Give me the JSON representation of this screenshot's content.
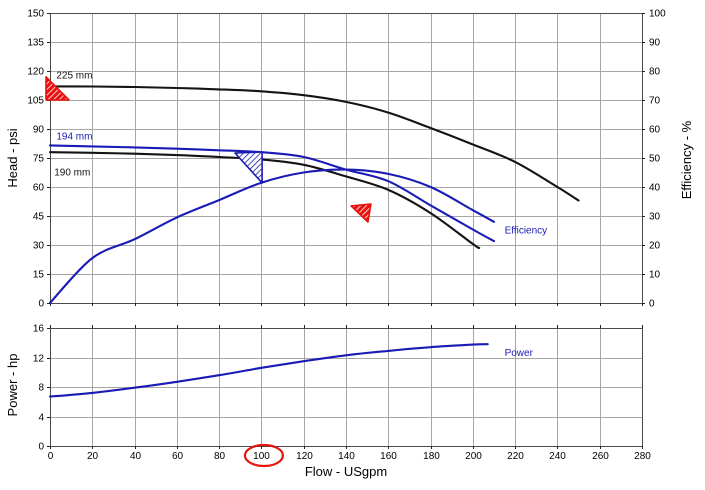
{
  "palette": {
    "curve_blue": "#1a1ab5",
    "curve_black": "#141414",
    "marker_red": "#e8120e",
    "annotation_red": "#e8120e",
    "grid": "#a6a6a6",
    "frame": "#4a4a4a",
    "text": "#000000"
  },
  "chart_data": [
    {
      "id": "head",
      "type": "line",
      "x_axis": {
        "label": "",
        "min": 0,
        "max": 280,
        "tick_step": 20,
        "show_tick_labels": false
      },
      "y_left": {
        "label": "Head - psi",
        "min": 0,
        "max": 150,
        "tick_step": 15
      },
      "y_right": {
        "label": "Efficiency - %",
        "min": 0,
        "max": 100,
        "tick_step": 10
      },
      "grid": true,
      "series": [
        {
          "name": "225 mm",
          "axis": "left",
          "color_key": "black",
          "x": [
            0,
            20,
            40,
            60,
            80,
            100,
            120,
            140,
            160,
            180,
            200,
            220,
            240,
            250
          ],
          "y": [
            112,
            112,
            111.7,
            111.2,
            110.5,
            109.5,
            107.5,
            104,
            98.5,
            90.5,
            82,
            73,
            60,
            53
          ],
          "label": {
            "text": "225 mm",
            "x": 3,
            "y": 116
          }
        },
        {
          "name": "194 mm",
          "axis": "left",
          "color_key": "blue",
          "x": [
            0,
            20,
            40,
            60,
            80,
            100,
            120,
            140,
            160,
            180,
            200,
            210
          ],
          "y": [
            81.5,
            81,
            80.5,
            79.8,
            79,
            78,
            75.5,
            69,
            63,
            50.5,
            38,
            32
          ],
          "label": {
            "text": "194 mm",
            "x": 3,
            "y": 84.5
          }
        },
        {
          "name": "190 mm",
          "axis": "left",
          "color_key": "black",
          "x": [
            0,
            20,
            40,
            60,
            80,
            100,
            120,
            140,
            160,
            180,
            200,
            203
          ],
          "y": [
            78,
            77.7,
            77.2,
            76.5,
            75.5,
            74.3,
            71.5,
            65.5,
            58.5,
            46.5,
            30.5,
            28.5
          ],
          "label": {
            "text": "190 mm",
            "x": 2,
            "y": 66
          }
        },
        {
          "name": "Efficiency",
          "axis": "right",
          "color_key": "blue",
          "x": [
            0,
            20,
            40,
            60,
            80,
            100,
            120,
            140,
            160,
            180,
            200,
            210
          ],
          "y": [
            0,
            15.5,
            22,
            29.5,
            35.5,
            41.5,
            45,
            46,
            44.5,
            40,
            32,
            28
          ],
          "label": {
            "text": "Efficiency",
            "x": 215,
            "y": 24
          }
        }
      ],
      "markers": [
        {
          "name": "duty-flag-blue",
          "color_key": "blue",
          "vertices": [
            [
              87.5,
              77.6
            ],
            [
              100.3,
              78.1
            ],
            [
              100.3,
              62.1
            ]
          ]
        },
        {
          "name": "flag-red-left",
          "color_key": "red",
          "vertices": [
            [
              -1.9,
              117
            ],
            [
              -1.9,
              105
            ],
            [
              9,
              105
            ]
          ]
        },
        {
          "name": "flag-red-mid",
          "color_key": "red",
          "vertices": [
            [
              142.4,
              50.2
            ],
            [
              151.8,
              51.2
            ],
            [
              150.4,
              41.9
            ]
          ]
        }
      ]
    },
    {
      "id": "power",
      "type": "line",
      "x_axis": {
        "label": "Flow - USgpm",
        "min": 0,
        "max": 280,
        "tick_step": 20,
        "show_tick_labels": true
      },
      "y_left": {
        "label": "Power - hp",
        "min": 0,
        "max": 16,
        "tick_step": 4
      },
      "grid": true,
      "series": [
        {
          "name": "Power",
          "axis": "left",
          "color_key": "blue",
          "x": [
            0,
            20,
            40,
            60,
            80,
            100,
            120,
            140,
            160,
            180,
            200,
            207
          ],
          "y": [
            6.7,
            7.2,
            7.9,
            8.7,
            9.6,
            10.6,
            11.5,
            12.3,
            12.9,
            13.4,
            13.75,
            13.8
          ],
          "label": {
            "text": "Power",
            "x": 215,
            "y": 12.2
          }
        }
      ],
      "annotations": [
        {
          "type": "ellipse-around-x-tick",
          "value": 100,
          "color_key": "red"
        }
      ]
    }
  ]
}
